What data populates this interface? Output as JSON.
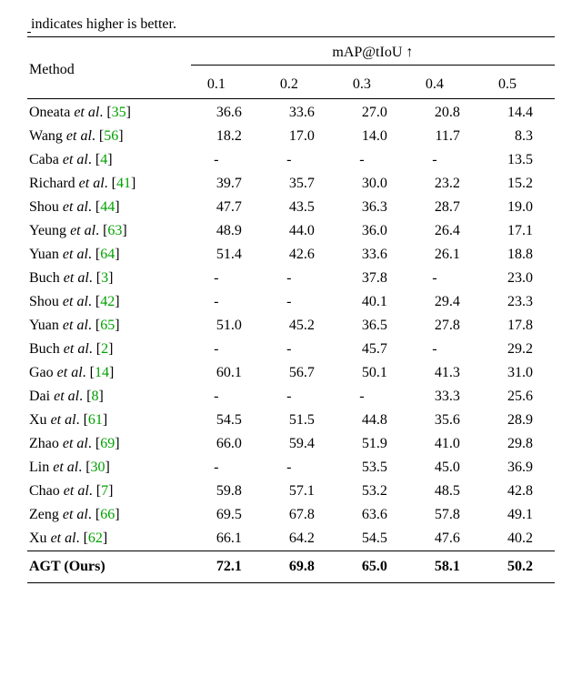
{
  "caption_fragment_html": "<span style=\"border-bottom:1px solid #000;\">&nbsp;</span>indicates higher is better.",
  "table": {
    "method_label": "Method",
    "group_label_html": "mAP@tIoU ↑",
    "col_headers": [
      "0.1",
      "0.2",
      "0.3",
      "0.4",
      "0.5"
    ],
    "rows": [
      {
        "author": "Oneata",
        "ref": "35",
        "vals": [
          "36.6",
          "33.6",
          "27.0",
          "20.8",
          "14.4"
        ]
      },
      {
        "author": "Wang",
        "ref": "56",
        "vals": [
          "18.2",
          "17.0",
          "14.0",
          "11.7",
          "8.3"
        ]
      },
      {
        "author": "Caba",
        "ref": "4",
        "vals": [
          "-",
          "-",
          "-",
          "-",
          "13.5"
        ]
      },
      {
        "author": "Richard",
        "ref": "41",
        "vals": [
          "39.7",
          "35.7",
          "30.0",
          "23.2",
          "15.2"
        ]
      },
      {
        "author": "Shou",
        "ref": "44",
        "vals": [
          "47.7",
          "43.5",
          "36.3",
          "28.7",
          "19.0"
        ]
      },
      {
        "author": "Yeung",
        "ref": "63",
        "vals": [
          "48.9",
          "44.0",
          "36.0",
          "26.4",
          "17.1"
        ]
      },
      {
        "author": "Yuan",
        "ref": "64",
        "vals": [
          "51.4",
          "42.6",
          "33.6",
          "26.1",
          "18.8"
        ]
      },
      {
        "author": "Buch",
        "ref": "3",
        "vals": [
          "-",
          "-",
          "37.8",
          "-",
          "23.0"
        ]
      },
      {
        "author": "Shou",
        "ref": "42",
        "vals": [
          "-",
          "-",
          "40.1",
          "29.4",
          "23.3"
        ]
      },
      {
        "author": "Yuan",
        "ref": "65",
        "vals": [
          "51.0",
          "45.2",
          "36.5",
          "27.8",
          "17.8"
        ]
      },
      {
        "author": "Buch",
        "ref": "2",
        "vals": [
          "-",
          "-",
          "45.7",
          "-",
          "29.2"
        ]
      },
      {
        "author": "Gao",
        "ref": "14",
        "vals": [
          "60.1",
          "56.7",
          "50.1",
          "41.3",
          "31.0"
        ]
      },
      {
        "author": "Dai",
        "ref": "8",
        "vals": [
          "-",
          "-",
          "-",
          "33.3",
          "25.6"
        ]
      },
      {
        "author": "Xu",
        "ref": "61",
        "vals": [
          "54.5",
          "51.5",
          "44.8",
          "35.6",
          "28.9"
        ]
      },
      {
        "author": "Zhao",
        "ref": "69",
        "vals": [
          "66.0",
          "59.4",
          "51.9",
          "41.0",
          "29.8"
        ]
      },
      {
        "author": "Lin",
        "ref": "30",
        "vals": [
          "-",
          "-",
          "53.5",
          "45.0",
          "36.9"
        ]
      },
      {
        "author": "Chao",
        "ref": "7",
        "vals": [
          "59.8",
          "57.1",
          "53.2",
          "48.5",
          "42.8"
        ]
      },
      {
        "author": "Zeng",
        "ref": "66",
        "vals": [
          "69.5",
          "67.8",
          "63.6",
          "57.8",
          "49.1"
        ]
      },
      {
        "author": "Xu",
        "ref": "62",
        "vals": [
          "66.1",
          "64.2",
          "54.5",
          "47.6",
          "40.2"
        ]
      }
    ],
    "ours": {
      "label": "AGT (Ours)",
      "vals": [
        "72.1",
        "69.8",
        "65.0",
        "58.1",
        "50.2"
      ]
    }
  },
  "style": {
    "cite_color": "#00a000",
    "font": "Times New Roman",
    "font_size_pt": 16
  }
}
